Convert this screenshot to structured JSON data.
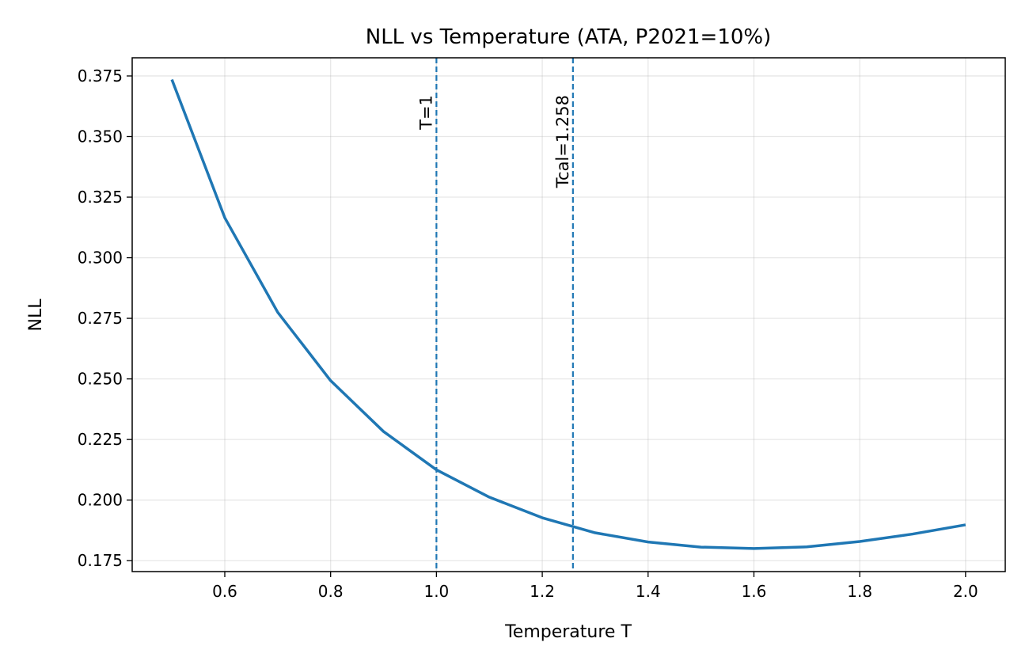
{
  "chart_data": {
    "type": "line",
    "title": "NLL vs Temperature (ATA, P2021=10%)",
    "xlabel": "Temperature T",
    "ylabel": "NLL",
    "xlim": [
      0.425,
      2.075
    ],
    "ylim": [
      0.1705,
      0.3825
    ],
    "xticks": [
      0.6,
      0.8,
      1.0,
      1.2,
      1.4,
      1.6,
      1.8,
      2.0
    ],
    "xtick_labels": [
      "0.6",
      "0.8",
      "1.0",
      "1.2",
      "1.4",
      "1.6",
      "1.8",
      "2.0"
    ],
    "yticks": [
      0.175,
      0.2,
      0.225,
      0.25,
      0.275,
      0.3,
      0.325,
      0.35,
      0.375
    ],
    "ytick_labels": [
      "0.175",
      "0.200",
      "0.225",
      "0.250",
      "0.275",
      "0.300",
      "0.325",
      "0.350",
      "0.375"
    ],
    "grid": true,
    "series": [
      {
        "color": "#1f77b4",
        "x": [
          0.5,
          0.6,
          0.7,
          0.8,
          0.9,
          1.0,
          1.1,
          1.2,
          1.3,
          1.4,
          1.5,
          1.6,
          1.7,
          1.8,
          1.9,
          2.0
        ],
        "y": [
          0.3735,
          0.3165,
          0.2775,
          0.2493,
          0.2283,
          0.2125,
          0.2012,
          0.1927,
          0.1865,
          0.1827,
          0.1806,
          0.18,
          0.1807,
          0.1829,
          0.186,
          0.1898
        ]
      }
    ],
    "vlines": [
      {
        "x": 1.0,
        "label": "T=1",
        "color": "#1f77b4",
        "style": "dashed"
      },
      {
        "x": 1.258,
        "label": "Tcal=1.258",
        "color": "#1f77b4",
        "style": "dashed"
      }
    ]
  }
}
